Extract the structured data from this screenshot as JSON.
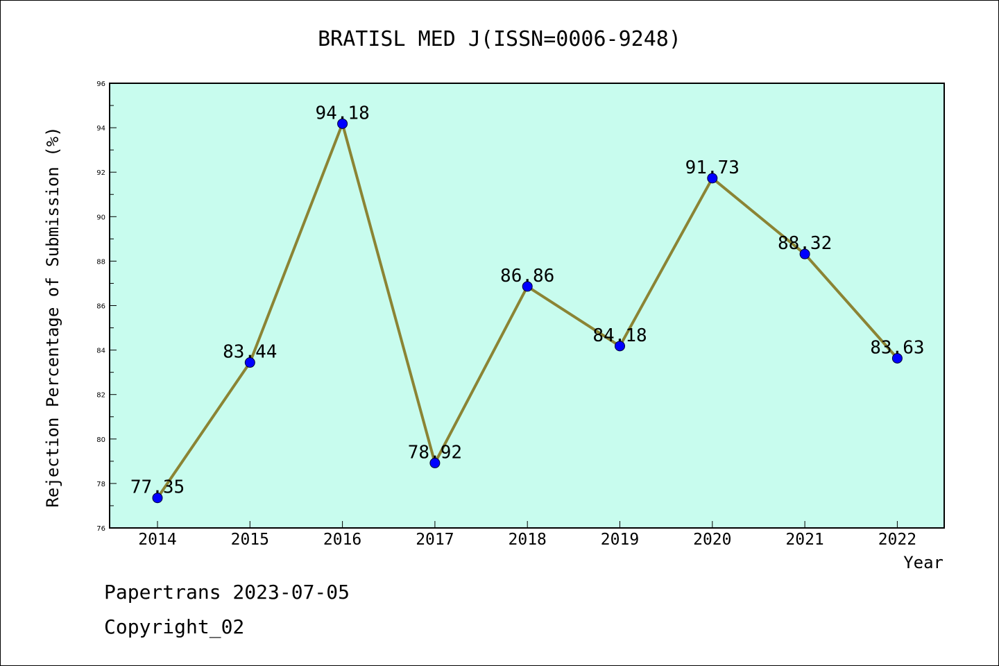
{
  "chart_data": {
    "type": "line",
    "title": "BRATISL MED J(ISSN=0006-9248)",
    "xlabel": "Year",
    "ylabel": "Rejection Percentage of Submission (%)",
    "categories": [
      "2014",
      "2015",
      "2016",
      "2017",
      "2018",
      "2019",
      "2020",
      "2021",
      "2022"
    ],
    "values": [
      77.35,
      83.44,
      94.18,
      78.92,
      86.86,
      84.18,
      91.73,
      88.32,
      83.63
    ],
    "data_labels": [
      "77.35",
      "83.44",
      "94.18",
      "78.92",
      "86.86",
      "84.18",
      "91.73",
      "88.32",
      "83.63"
    ],
    "ylim": [
      76,
      96
    ],
    "yticks": [
      "76",
      "78",
      "80",
      "82",
      "84",
      "86",
      "88",
      "90",
      "92",
      "94",
      "96"
    ],
    "grid": false,
    "colors": {
      "plot_background": "#c8fcee",
      "line": "#8b8434",
      "marker": "#0000ff"
    }
  },
  "footer": {
    "line1": "Papertrans 2023-07-05",
    "line2": "Copyright_02"
  }
}
